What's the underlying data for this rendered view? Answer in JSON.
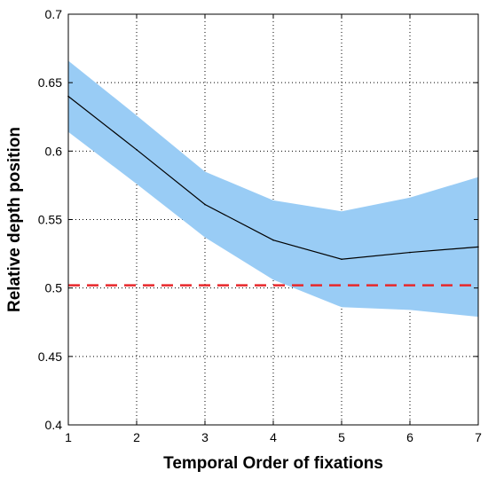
{
  "chart_data": {
    "type": "line",
    "title": "",
    "xlabel": "Temporal Order of fixations",
    "ylabel": "Relative depth position",
    "xlim": [
      1,
      7
    ],
    "ylim": [
      0.4,
      0.7
    ],
    "x_ticks": [
      1,
      2,
      3,
      4,
      5,
      6,
      7
    ],
    "x_tick_labels": [
      "1",
      "2",
      "3",
      "4",
      "5",
      "6",
      "7"
    ],
    "y_ticks": [
      0.4,
      0.45,
      0.5,
      0.55,
      0.6,
      0.65,
      0.7
    ],
    "y_tick_labels": [
      "0.4",
      "0.45",
      "0.5",
      "0.55",
      "0.6",
      "0.65",
      "0.7"
    ],
    "grid": true,
    "legend": "none",
    "series": [
      {
        "type": "line",
        "x": [
          1,
          2,
          3,
          4,
          5,
          6,
          7
        ],
        "values": [
          0.64,
          0.601,
          0.561,
          0.535,
          0.521,
          0.526,
          0.53
        ],
        "color": "#000000"
      },
      {
        "type": "band",
        "x": [
          1,
          2,
          3,
          4,
          5,
          6,
          7
        ],
        "lower": [
          0.614,
          0.576,
          0.537,
          0.506,
          0.486,
          0.484,
          0.479
        ],
        "upper": [
          0.666,
          0.626,
          0.585,
          0.564,
          0.556,
          0.566,
          0.581
        ],
        "color": "#99ccf5"
      },
      {
        "type": "reference-line",
        "x": [
          1,
          7
        ],
        "values": [
          0.502,
          0.502
        ],
        "color": "#e8282b",
        "style": "dashed"
      }
    ]
  }
}
